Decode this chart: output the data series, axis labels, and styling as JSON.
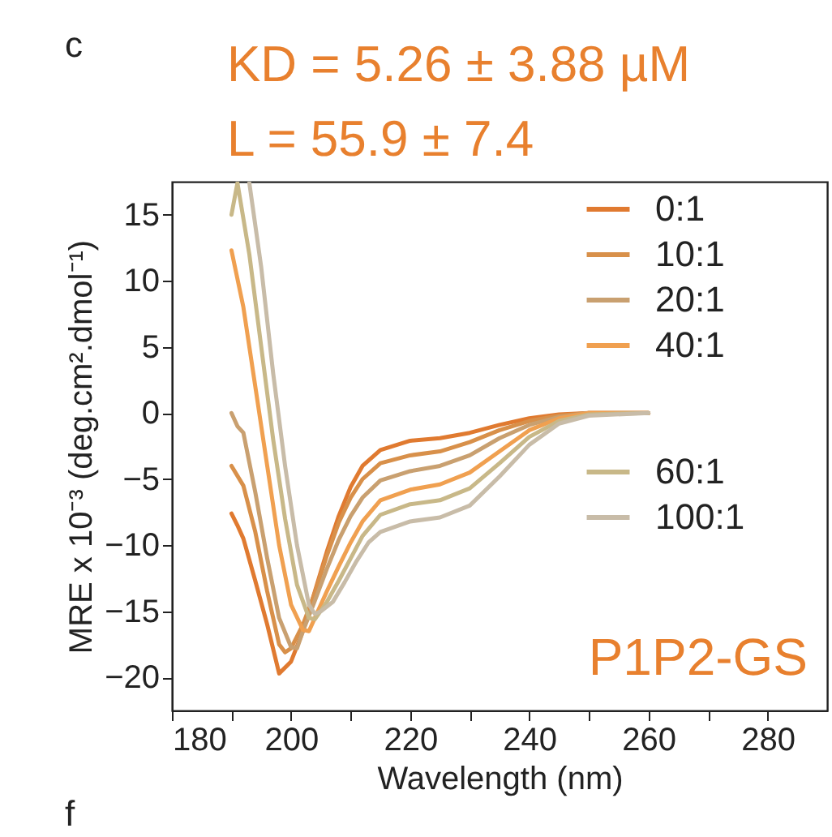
{
  "chart_data": {
    "type": "line",
    "title": "KD = 5.26 ± 3.88 µM",
    "subtitle": "L = 55.9 ± 7.4",
    "xlabel": "Wavelength (nm)",
    "ylabel": "MRE x 10⁻³ (deg.cm².dmol⁻¹)",
    "annotations": [
      "c",
      "P1P2-GS",
      "f"
    ],
    "xlim": [
      180,
      290
    ],
    "xticks": [
      180,
      {
        "value": 190,
        "label": null
      },
      200,
      {
        "value": 210,
        "label": null
      },
      220,
      {
        "value": 230,
        "label": null
      },
      240,
      {
        "value": 250,
        "label": null
      },
      260,
      {
        "value": 270,
        "label": null
      },
      280
    ],
    "ylim": [
      -22.5,
      17.5
    ],
    "yticks": [
      -20,
      -15,
      -10,
      -5,
      0,
      5,
      10,
      15
    ],
    "grid": false,
    "legend": "top right",
    "marker": "none",
    "line_style": "solid",
    "series": [
      {
        "name": "0:1",
        "color": "#e07a30",
        "x": [
          190,
          191,
          192,
          194,
          196,
          198,
          200,
          202,
          204,
          206,
          208,
          210,
          212,
          215,
          220,
          225,
          230,
          235,
          240,
          245,
          250,
          255,
          260
        ],
        "values": [
          -7.6,
          -8.5,
          -9.5,
          -12.7,
          -16,
          -19.7,
          -18.8,
          -16.5,
          -13.5,
          -10.5,
          -7.8,
          -5.6,
          -4,
          -2.8,
          -2.1,
          -1.9,
          -1.5,
          -0.9,
          -0.4,
          -0.1,
          0,
          0,
          0
        ]
      },
      {
        "name": "10:1",
        "color": "#d8904a",
        "x": [
          190,
          192,
          194,
          196,
          198,
          199,
          200,
          202,
          204,
          206,
          208,
          210,
          212,
          215,
          220,
          225,
          230,
          235,
          240,
          245,
          250,
          260
        ],
        "values": [
          -4,
          -5.5,
          -9,
          -13.5,
          -17.5,
          -18.1,
          -17.8,
          -16,
          -13.6,
          -10.8,
          -8.3,
          -6.4,
          -5,
          -3.8,
          -3.2,
          -2.9,
          -2.2,
          -1.3,
          -0.6,
          -0.2,
          0,
          0
        ]
      },
      {
        "name": "20:1",
        "color": "#c9a070",
        "x": [
          190,
          191,
          192,
          194,
          196,
          198,
          200,
          201,
          202,
          204,
          206,
          208,
          210,
          212,
          215,
          220,
          225,
          230,
          235,
          240,
          245,
          250,
          260
        ],
        "values": [
          0,
          -1,
          -1.5,
          -6,
          -11,
          -15.5,
          -17.7,
          -17.8,
          -16.5,
          -14.2,
          -11.8,
          -9.6,
          -7.8,
          -6.4,
          -5.1,
          -4.4,
          -4,
          -3.2,
          -1.9,
          -0.9,
          -0.3,
          0,
          0
        ]
      },
      {
        "name": "40:1",
        "color": "#f0a050",
        "x": [
          190,
          192,
          194,
          196,
          198,
          200,
          202,
          203,
          204,
          206,
          208,
          210,
          212,
          215,
          220,
          225,
          230,
          235,
          240,
          245,
          250,
          260
        ],
        "values": [
          12.3,
          8,
          2,
          -4,
          -10,
          -14.5,
          -16.4,
          -16.5,
          -15.5,
          -13.5,
          -11.6,
          -9.8,
          -8.2,
          -6.6,
          -5.8,
          -5.4,
          -4.5,
          -2.9,
          -1.3,
          -0.4,
          0,
          0
        ]
      },
      {
        "name": "60:1",
        "color": "#c8b888",
        "x": [
          190,
          191,
          193,
          195,
          197,
          199,
          201,
          203,
          204,
          206,
          208,
          210,
          212,
          215,
          220,
          225,
          230,
          235,
          240,
          245,
          250,
          260
        ],
        "values": [
          15,
          17.4,
          12,
          5,
          -2,
          -8,
          -13,
          -15.5,
          -15.6,
          -14.3,
          -12.7,
          -11,
          -9.3,
          -7.7,
          -6.9,
          -6.6,
          -5.7,
          -3.8,
          -1.8,
          -0.6,
          -0.1,
          0
        ]
      },
      {
        "name": "100:1",
        "color": "#c8bca8",
        "x": [
          193,
          195,
          197,
          199,
          201,
          203,
          204,
          205,
          207,
          209,
          211,
          213,
          215,
          220,
          225,
          230,
          235,
          240,
          245,
          250,
          260
        ],
        "values": [
          17.4,
          11,
          3,
          -4,
          -10,
          -14.5,
          -15.2,
          -15,
          -14.3,
          -12.8,
          -11.2,
          -9.8,
          -9,
          -8.2,
          -7.9,
          -7,
          -4.8,
          -2.4,
          -0.8,
          -0.2,
          0
        ]
      }
    ]
  }
}
